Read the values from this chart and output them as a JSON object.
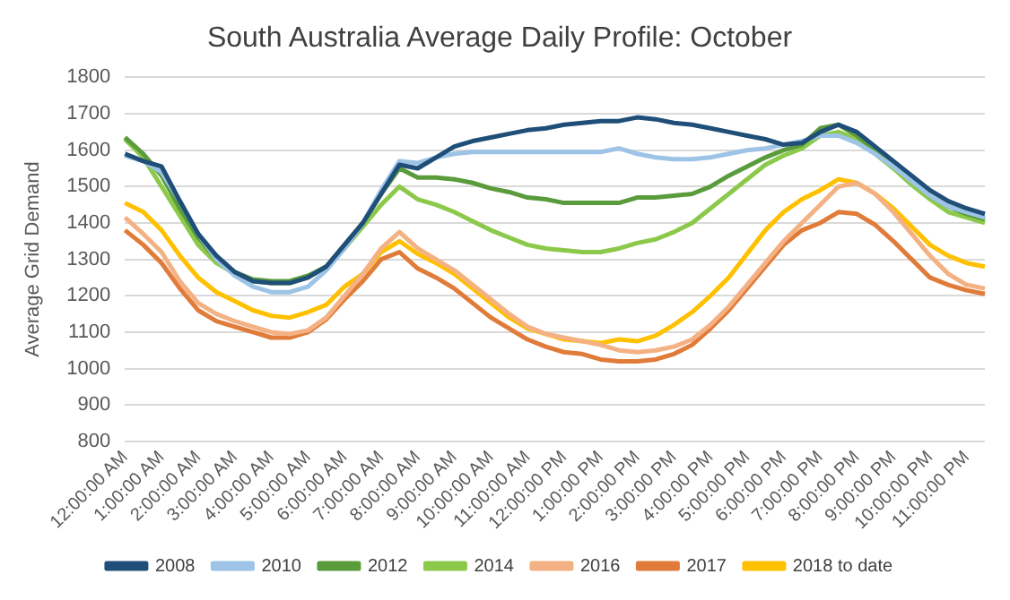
{
  "chart_data": {
    "type": "line",
    "title": "South Australia Average Daily Profile: October",
    "ylabel": "Average Grid Demand",
    "categories": [
      "12:00:00 AM",
      null,
      "1:00:00 AM",
      null,
      "2:00:00 AM",
      null,
      "3:00:00 AM",
      null,
      "4:00:00 AM",
      null,
      "5:00:00 AM",
      null,
      "6:00:00 AM",
      null,
      "7:00:00 AM",
      null,
      "8:00:00 AM",
      null,
      "9:00:00 AM",
      null,
      "10:00:00 AM",
      null,
      "11:00:00 AM",
      null,
      "12:00:00 PM",
      null,
      "1:00:00 PM",
      null,
      "2:00:00 PM",
      null,
      "3:00:00 PM",
      null,
      "4:00:00 PM",
      null,
      "5:00:00 PM",
      null,
      "6:00:00 PM",
      null,
      "7:00:00 PM",
      null,
      "8:00:00 PM",
      null,
      "9:00:00 PM",
      null,
      "10:00:00 PM",
      null,
      "11:00:00 PM",
      null
    ],
    "series": [
      {
        "name": "2008",
        "color": "#1f4e79",
        "values": [
          1590,
          1570,
          1555,
          1460,
          1370,
          1310,
          1265,
          1240,
          1235,
          1235,
          1250,
          1280,
          1340,
          1400,
          1480,
          1560,
          1550,
          1580,
          1610,
          1625,
          1635,
          1645,
          1655,
          1660,
          1670,
          1675,
          1680,
          1680,
          1690,
          1685,
          1675,
          1670,
          1660,
          1650,
          1640,
          1630,
          1615,
          1620,
          1650,
          1670,
          1650,
          1610,
          1570,
          1530,
          1490,
          1460,
          1440,
          1425
        ]
      },
      {
        "name": "2010",
        "color": "#9dc3e6",
        "values": [
          1585,
          1570,
          1540,
          1460,
          1370,
          1300,
          1255,
          1225,
          1210,
          1210,
          1225,
          1270,
          1330,
          1400,
          1490,
          1570,
          1565,
          1580,
          1590,
          1595,
          1595,
          1595,
          1595,
          1595,
          1595,
          1595,
          1595,
          1605,
          1590,
          1580,
          1575,
          1575,
          1580,
          1590,
          1600,
          1605,
          1615,
          1625,
          1640,
          1640,
          1620,
          1590,
          1555,
          1515,
          1475,
          1445,
          1430,
          1415
        ]
      },
      {
        "name": "2012",
        "color": "#5a9b3c",
        "values": [
          1635,
          1590,
          1530,
          1440,
          1360,
          1300,
          1265,
          1245,
          1240,
          1240,
          1255,
          1280,
          1340,
          1400,
          1480,
          1550,
          1525,
          1525,
          1520,
          1510,
          1495,
          1485,
          1470,
          1465,
          1455,
          1455,
          1455,
          1455,
          1470,
          1470,
          1475,
          1480,
          1500,
          1530,
          1555,
          1580,
          1600,
          1615,
          1660,
          1670,
          1640,
          1600,
          1560,
          1520,
          1475,
          1445,
          1425,
          1410
        ]
      },
      {
        "name": "2014",
        "color": "#8cc94b",
        "values": [
          1630,
          1580,
          1500,
          1420,
          1340,
          1290,
          1260,
          1240,
          1235,
          1235,
          1250,
          1280,
          1330,
          1390,
          1450,
          1500,
          1465,
          1450,
          1430,
          1405,
          1380,
          1360,
          1340,
          1330,
          1325,
          1320,
          1320,
          1330,
          1345,
          1355,
          1375,
          1400,
          1440,
          1480,
          1520,
          1560,
          1585,
          1605,
          1640,
          1650,
          1630,
          1590,
          1550,
          1505,
          1465,
          1430,
          1415,
          1400
        ]
      },
      {
        "name": "2016",
        "color": "#f4b183",
        "values": [
          1415,
          1370,
          1320,
          1240,
          1180,
          1150,
          1130,
          1115,
          1100,
          1095,
          1105,
          1140,
          1200,
          1260,
          1330,
          1375,
          1330,
          1300,
          1270,
          1230,
          1190,
          1150,
          1115,
          1095,
          1085,
          1075,
          1065,
          1050,
          1045,
          1050,
          1060,
          1080,
          1120,
          1170,
          1230,
          1290,
          1350,
          1400,
          1450,
          1500,
          1510,
          1480,
          1430,
          1370,
          1310,
          1260,
          1230,
          1220
        ]
      },
      {
        "name": "2017",
        "color": "#e07b39",
        "values": [
          1380,
          1340,
          1290,
          1220,
          1160,
          1130,
          1115,
          1100,
          1085,
          1085,
          1100,
          1135,
          1190,
          1240,
          1300,
          1320,
          1275,
          1250,
          1220,
          1180,
          1140,
          1110,
          1080,
          1060,
          1045,
          1040,
          1025,
          1020,
          1020,
          1025,
          1040,
          1065,
          1110,
          1160,
          1220,
          1280,
          1340,
          1380,
          1400,
          1430,
          1425,
          1395,
          1350,
          1300,
          1250,
          1230,
          1215,
          1205
        ]
      },
      {
        "name": "2018 to date",
        "color": "#ffc000",
        "values": [
          1455,
          1430,
          1380,
          1310,
          1250,
          1210,
          1185,
          1160,
          1145,
          1140,
          1155,
          1175,
          1225,
          1260,
          1320,
          1350,
          1315,
          1290,
          1260,
          1220,
          1180,
          1140,
          1110,
          1095,
          1080,
          1075,
          1070,
          1080,
          1075,
          1090,
          1120,
          1155,
          1200,
          1250,
          1315,
          1380,
          1430,
          1465,
          1490,
          1520,
          1510,
          1480,
          1440,
          1390,
          1340,
          1310,
          1290,
          1280
        ]
      }
    ],
    "ylim": [
      800,
      1800
    ],
    "yticks": [
      800,
      900,
      1000,
      1100,
      1200,
      1300,
      1400,
      1500,
      1600,
      1700,
      1800
    ],
    "grid": "y",
    "legend": "bottom",
    "marker": "none",
    "line_style": "solid"
  }
}
